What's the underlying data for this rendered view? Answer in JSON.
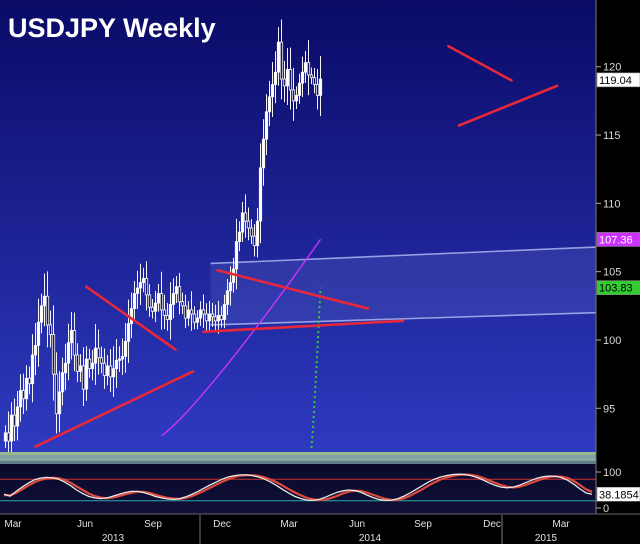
{
  "chart_data": {
    "type": "candlestick",
    "title": "USDJPY Weekly",
    "y_ticks": [
      95,
      100,
      105,
      110,
      115,
      120
    ],
    "price_ylim": [
      91.8,
      124.3
    ],
    "x_ticks": [
      "Mar",
      "Jun",
      "Sep",
      "Dec",
      "Mar",
      "Jun",
      "Sep",
      "Dec",
      "Mar"
    ],
    "years": [
      "2013",
      "2014",
      "2015"
    ],
    "grid": false,
    "background": {
      "top": "#0a0a66",
      "bottom": "#2e3ac0"
    },
    "weekly_closes": [
      93.2,
      92.6,
      94.5,
      93.7,
      95.1,
      96.3,
      95.7,
      97.2,
      96.8,
      98.9,
      99.6,
      101.3,
      102.5,
      103.2,
      101.1,
      100.4,
      97.5,
      94.6,
      96.2,
      97.6,
      98.3,
      99.8,
      100.7,
      98.9,
      97.7,
      98.1,
      96.4,
      98.6,
      97.9,
      98.3,
      99.4,
      98.7,
      98.3,
      97.4,
      98.1,
      97.3,
      97.9,
      98.5,
      98.6,
      98.8,
      99.9,
      101.2,
      102.3,
      103.4,
      103.8,
      104.2,
      104.5,
      103.3,
      102.4,
      102.1,
      102.7,
      103.4,
      102.2,
      101.8,
      101.5,
      102.6,
      103.4,
      103.9,
      102.8,
      102.5,
      101.6,
      102.2,
      101.9,
      101.3,
      101.6,
      102.2,
      101.9,
      101.4,
      101.9,
      101.7,
      101.4,
      101.8,
      101.5,
      102.6,
      103.6,
      104.2,
      105.2,
      107.2,
      107.9,
      109.3,
      108.7,
      108.2,
      107.6,
      106.9,
      108.7,
      112.6,
      114.7,
      116.7,
      117.8,
      118.7,
      119.6,
      121.8,
      119.1,
      118.6,
      119.8,
      118.3,
      117.5,
      117.9,
      118.8,
      119.6,
      120.3,
      119.4,
      119.2,
      118.7,
      117.9,
      119.1
    ],
    "series": [
      {
        "name": "",
        "kind": "moving-average",
        "color": "#cc33ff",
        "start_index": 52,
        "first": 93.0,
        "last": 107.36,
        "label": "107.36"
      },
      {
        "name": "",
        "kind": "moving-average",
        "color": "#33cc33",
        "start_index": 102,
        "first": 92.1,
        "last": 103.83,
        "label": "103.83"
      }
    ],
    "last_price": {
      "value": 119.04,
      "label": "119.04"
    },
    "annotations": {
      "red_trendlines": [
        {
          "from": {
            "week": 23.5,
            "price": 103.9
          },
          "to": {
            "week": 49,
            "price": 99.3
          }
        },
        {
          "from": {
            "week": 9,
            "price": 92.2
          },
          "to": {
            "week": 54,
            "price": 97.7
          }
        },
        {
          "from": {
            "week": 61,
            "price": 105.1
          },
          "to": {
            "week": 104,
            "price": 102.3
          }
        },
        {
          "from": {
            "week": 57,
            "price": 100.6
          },
          "to": {
            "week": 114,
            "price": 101.4
          }
        },
        {
          "from": {
            "week": 127,
            "price": 121.5
          },
          "to": {
            "week": 145,
            "price": 119.0
          }
        },
        {
          "from": {
            "week": 130,
            "price": 115.7
          },
          "to": {
            "week": 158,
            "price": 118.6
          }
        }
      ],
      "channel_lines": [
        {
          "from": {
            "week": 59,
            "price": 105.6
          },
          "to": {
            "week": 169,
            "price": 106.8
          }
        },
        {
          "from": {
            "week": 59,
            "price": 101.1
          },
          "to": {
            "week": 169,
            "price": 102.0
          }
        }
      ],
      "channel_fill_color": "#7888d8"
    },
    "stochastic": {
      "levels": [
        "100",
        "0"
      ],
      "reference_lines": [
        80,
        20
      ],
      "last_value": 38.1854,
      "last_label": "38.1854",
      "main": [
        38,
        33,
        46,
        58,
        69,
        78,
        83,
        85,
        84,
        80,
        72,
        62,
        50,
        40,
        32,
        28,
        26,
        28,
        33,
        38,
        43,
        46,
        46,
        43,
        38,
        32,
        28,
        25,
        24,
        26,
        31,
        38,
        46,
        55,
        64,
        72,
        80,
        86,
        90,
        92,
        92,
        90,
        86,
        80,
        72,
        62,
        51,
        41,
        32,
        26,
        22,
        21,
        24,
        30,
        37,
        44,
        48,
        50,
        48,
        43,
        35,
        28,
        23,
        21,
        22,
        26,
        33,
        42,
        52,
        62,
        72,
        80,
        86,
        90,
        93,
        94,
        93,
        90,
        85,
        78,
        70,
        63,
        58,
        56,
        58,
        63,
        70,
        77,
        83,
        87,
        89,
        88,
        84,
        77,
        66,
        53,
        42,
        38
      ],
      "signal": [
        36,
        35,
        42,
        52,
        62,
        71,
        78,
        82,
        84,
        83,
        78,
        70,
        60,
        50,
        40,
        33,
        29,
        27,
        29,
        33,
        38,
        42,
        45,
        45,
        42,
        37,
        32,
        28,
        26,
        25,
        28,
        33,
        40,
        48,
        56,
        65,
        73,
        80,
        86,
        90,
        91,
        91,
        89,
        85,
        79,
        71,
        62,
        52,
        43,
        35,
        28,
        24,
        22,
        24,
        28,
        34,
        41,
        46,
        48,
        47,
        42,
        36,
        30,
        25,
        22,
        23,
        27,
        34,
        43,
        52,
        62,
        71,
        79,
        85,
        89,
        92,
        93,
        92,
        89,
        84,
        77,
        70,
        64,
        59,
        57,
        59,
        64,
        70,
        76,
        82,
        86,
        88,
        87,
        83,
        75,
        64,
        52,
        45
      ]
    }
  }
}
